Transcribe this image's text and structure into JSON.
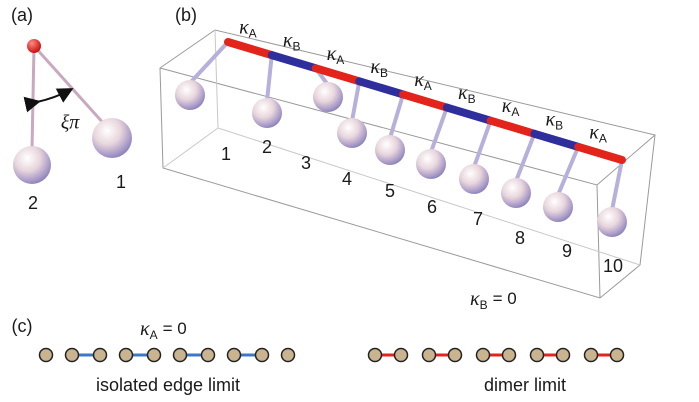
{
  "panels": {
    "a": {
      "label": "(a)",
      "angle": "ξπ",
      "pendulums": [
        "2",
        "1"
      ]
    },
    "b": {
      "label": "(b)",
      "couplings": [
        {
          "symbol": "κ",
          "sub": "A"
        },
        {
          "symbol": "κ",
          "sub": "B"
        },
        {
          "symbol": "κ",
          "sub": "A"
        },
        {
          "symbol": "κ",
          "sub": "B"
        },
        {
          "symbol": "κ",
          "sub": "A"
        },
        {
          "symbol": "κ",
          "sub": "B"
        },
        {
          "symbol": "κ",
          "sub": "A"
        },
        {
          "symbol": "κ",
          "sub": "B"
        },
        {
          "symbol": "κ",
          "sub": "A"
        }
      ],
      "pendulums": [
        "1",
        "2",
        "3",
        "4",
        "5",
        "6",
        "7",
        "8",
        "9",
        "10"
      ],
      "condition": {
        "symbol": "κ",
        "sub": "B",
        "text": "= 0"
      }
    },
    "c": {
      "label": "(c)",
      "left": {
        "condition": {
          "symbol": "κ",
          "sub": "A",
          "text": "= 0"
        },
        "caption": "isolated edge limit"
      },
      "right": {
        "caption": "dimer limit"
      }
    }
  }
}
